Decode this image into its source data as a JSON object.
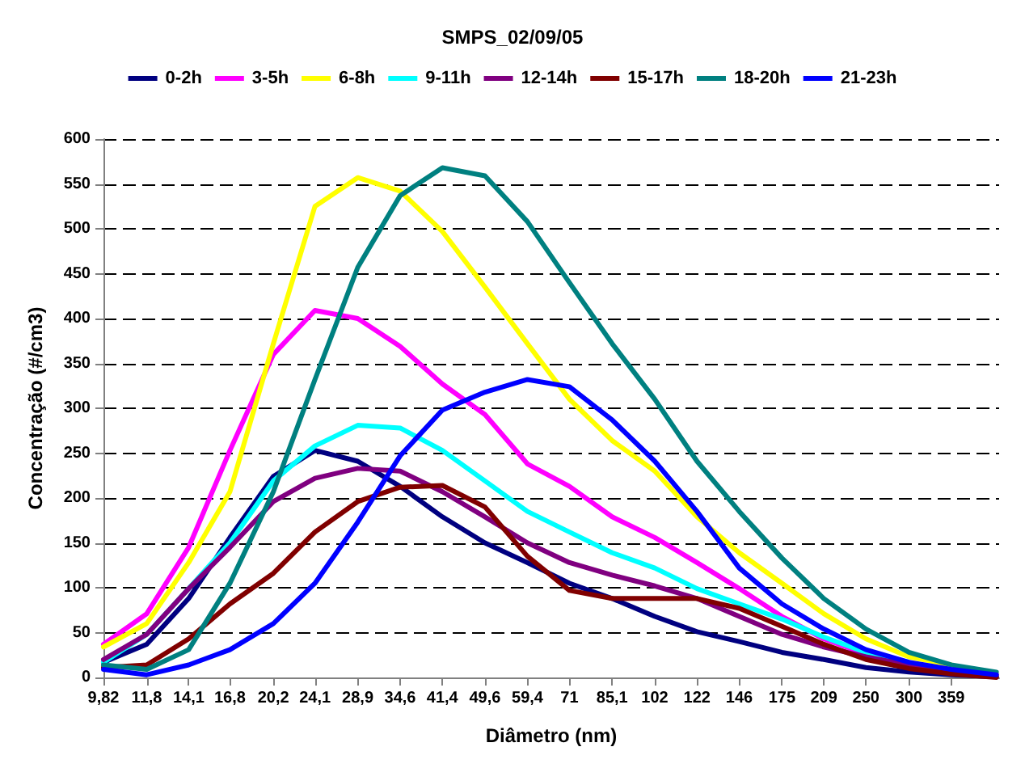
{
  "chart_data": {
    "type": "line",
    "title": "SMPS_02/09/05",
    "xlabel": "Diâmetro (nm)",
    "ylabel": "Concentração (#/cm3)",
    "log": "x",
    "xlim": [
      9.82,
      440
    ],
    "xticks": [
      {
        "value": 9.82,
        "label": "9,82"
      },
      {
        "value": 11.8,
        "label": "11,8"
      },
      {
        "value": 14.1,
        "label": "14,1"
      },
      {
        "value": 16.8,
        "label": "16,8"
      },
      {
        "value": 20.2,
        "label": "20,2"
      },
      {
        "value": 24.1,
        "label": "24,1"
      },
      {
        "value": 28.9,
        "label": "28,9"
      },
      {
        "value": 34.6,
        "label": "34,6"
      },
      {
        "value": 41.4,
        "label": "41,4"
      },
      {
        "value": 49.6,
        "label": "49,6"
      },
      {
        "value": 59.4,
        "label": "59,4"
      },
      71,
      {
        "value": 85.1,
        "label": "85,1"
      },
      102,
      122,
      146,
      175,
      209,
      250,
      300,
      359
    ],
    "ylim": [
      0,
      600
    ],
    "yticks": [
      0,
      50,
      100,
      150,
      200,
      250,
      300,
      350,
      400,
      450,
      500,
      550,
      600
    ],
    "grid": "y",
    "legend": "top",
    "marker": "none",
    "line_style": "solid",
    "x": [
      9.82,
      11.8,
      14.1,
      16.8,
      20.2,
      24.1,
      28.9,
      34.6,
      41.4,
      49.6,
      59.4,
      71,
      85.1,
      102,
      122,
      146,
      175,
      209,
      250,
      300,
      359,
      435
    ],
    "series": [
      {
        "name": "0-2h",
        "color": "#000080",
        "values": [
          17,
          37,
          88,
          156,
          224,
          253,
          241,
          213,
          179,
          150,
          128,
          105,
          88,
          68,
          51,
          40,
          28,
          20,
          11,
          6,
          3,
          1
        ]
      },
      {
        "name": "3-5h",
        "color": "#ff00ff",
        "values": [
          37,
          71,
          145,
          253,
          360,
          409,
          400,
          369,
          327,
          293,
          238,
          213,
          179,
          156,
          128,
          99,
          68,
          43,
          26,
          14,
          null,
          null
        ]
      },
      {
        "name": "6-8h",
        "color": "#ffff00",
        "values": [
          34,
          60,
          128,
          207,
          372,
          525,
          557,
          542,
          497,
          435,
          372,
          310,
          264,
          230,
          179,
          139,
          105,
          71,
          43,
          23,
          14,
          null
        ]
      },
      {
        "name": "9-11h",
        "color": "#00ffff",
        "values": [
          17,
          48,
          99,
          150,
          219,
          258,
          281,
          278,
          253,
          219,
          185,
          162,
          139,
          122,
          99,
          82,
          65,
          45,
          28,
          17,
          null,
          null
        ]
      },
      {
        "name": "12-14h",
        "color": "#800080",
        "values": [
          20,
          48,
          99,
          145,
          196,
          222,
          233,
          230,
          207,
          179,
          150,
          128,
          114,
          102,
          88,
          68,
          48,
          34,
          23,
          14,
          7,
          3
        ]
      },
      {
        "name": "15-17h",
        "color": "#800000",
        "values": [
          11,
          14,
          43,
          82,
          116,
          162,
          196,
          212,
          214,
          190,
          135,
          97,
          88,
          88,
          88,
          77,
          57,
          37,
          20,
          10,
          4,
          0
        ]
      },
      {
        "name": "18-20h",
        "color": "#008080",
        "values": [
          14,
          9,
          31,
          105,
          207,
          332,
          457,
          537,
          568,
          559,
          508,
          440,
          372,
          310,
          241,
          185,
          133,
          88,
          54,
          28,
          14,
          6
        ]
      },
      {
        "name": "21-23h",
        "color": "#0000ff",
        "values": [
          9,
          3,
          14,
          31,
          60,
          105,
          173,
          247,
          298,
          318,
          332,
          324,
          287,
          241,
          185,
          122,
          82,
          54,
          31,
          17,
          9,
          3
        ]
      }
    ]
  }
}
